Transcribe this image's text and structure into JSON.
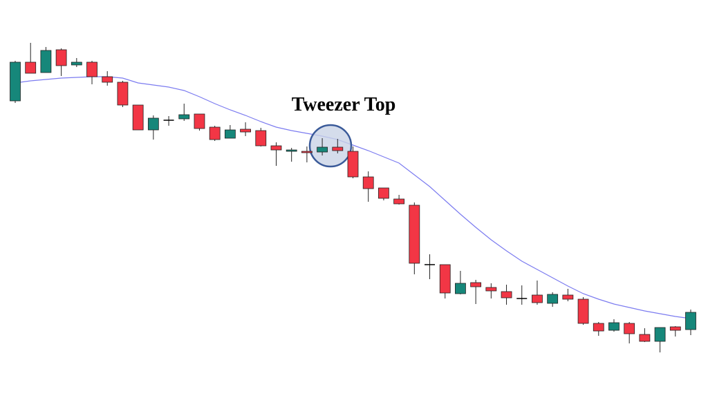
{
  "chart_data": {
    "type": "candlestick",
    "annotation": "Tweezer Top",
    "ylim": [
      0,
      576
    ],
    "up_color": "#16877a",
    "down_color": "#f23645",
    "doji_color": "#000000",
    "open": [
      430,
      486,
      471,
      504,
      482,
      486,
      465,
      457,
      424,
      388,
      402,
      404,
      411,
      392,
      376,
      389,
      387,
      365,
      357,
      357,
      356,
      363,
      357,
      320,
      304,
      288,
      279,
      193,
      193,
      151,
      167,
      160,
      154,
      144,
      149,
      137,
      149,
      143,
      108,
      98,
      108,
      92,
      82,
      103,
      99
    ],
    "high": [
      488,
      514,
      508,
      506,
      492,
      488,
      473,
      459,
      424,
      409,
      408,
      426,
      411,
      394,
      395,
      399,
      391,
      370,
      362,
      364,
      376,
      375,
      364,
      328,
      304,
      294,
      283,
      208,
      193,
      184,
      171,
      166,
      164,
      163,
      170,
      153,
      158,
      146,
      110,
      114,
      110,
      101,
      102,
      104,
      128
    ],
    "low": [
      427,
      470,
      471,
      466,
      479,
      454,
      452,
      421,
      388,
      374,
      394,
      401,
      387,
      372,
      376,
      379,
      364,
      336,
      342,
      341,
      351,
      354,
      318,
      284,
      286,
      280,
      179,
      172,
      144,
      150,
      136,
      144,
      135,
      135,
      135,
      132,
      140,
      106,
      90,
      96,
      79,
      81,
      66,
      89,
      91
    ],
    "close": [
      486,
      470,
      503,
      481,
      486,
      465,
      457,
      424,
      388,
      405,
      402,
      410,
      390,
      374,
      388,
      385,
      365,
      359,
      359,
      355,
      363,
      358,
      320,
      303,
      289,
      281,
      195,
      193,
      152,
      166,
      161,
      155,
      145,
      144,
      138,
      150,
      143,
      108,
      97,
      109,
      93,
      82,
      102,
      98,
      124
    ],
    "moving_average": {
      "color": "#7b7bf0",
      "values": [
        456,
        459,
        461,
        463,
        464,
        465,
        465,
        463,
        456,
        453,
        450,
        445,
        436,
        426,
        417,
        409,
        400,
        392,
        387,
        383,
        379,
        374,
        366,
        358,
        349,
        340,
        323,
        306,
        286,
        266,
        247,
        229,
        213,
        198,
        186,
        174,
        162,
        151,
        143,
        136,
        131,
        126,
        122,
        118,
        115
      ]
    }
  }
}
